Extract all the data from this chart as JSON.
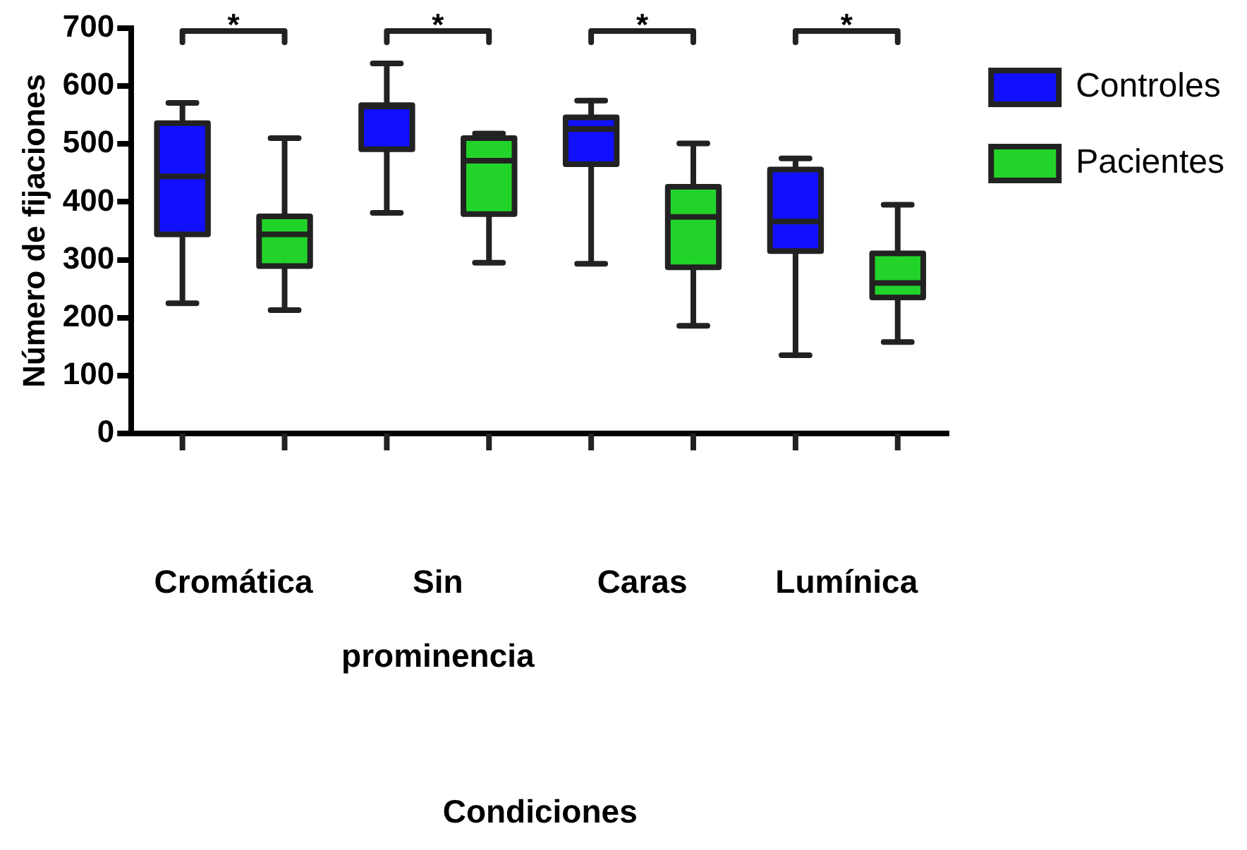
{
  "chart_data": {
    "type": "box",
    "categories": [
      "Cromática",
      "Sin prominencia",
      "Caras",
      "Lumínica"
    ],
    "series": [
      {
        "name": "Controles",
        "color": "#1010ff",
        "boxes": [
          {
            "low": 225,
            "q1": 344,
            "median": 444,
            "q3": 536,
            "high": 571
          },
          {
            "low": 381,
            "q1": 491,
            "median": 565,
            "q3": 567,
            "high": 639
          },
          {
            "low": 293,
            "q1": 465,
            "median": 526,
            "q3": 546,
            "high": 575
          },
          {
            "low": 135,
            "q1": 315,
            "median": 366,
            "q3": 456,
            "high": 475
          }
        ]
      },
      {
        "name": "Pacientes",
        "color": "#22d42a",
        "boxes": [
          {
            "low": 213,
            "q1": 289,
            "median": 344,
            "q3": 375,
            "high": 510
          },
          {
            "low": 295,
            "q1": 379,
            "median": 471,
            "q3": 510,
            "high": 518
          },
          {
            "low": 186,
            "q1": 287,
            "median": 374,
            "q3": 426,
            "high": 501
          },
          {
            "low": 158,
            "q1": 235,
            "median": 260,
            "q3": 311,
            "high": 395
          }
        ]
      }
    ],
    "ylim": [
      0,
      700
    ],
    "yticks": [
      0,
      100,
      200,
      300,
      400,
      500,
      600,
      700
    ],
    "xlabel": "Condiciones",
    "ylabel": "Número de fijaciones",
    "legend": "top right",
    "annotations": [
      "*",
      "*",
      "*",
      "*"
    ]
  }
}
